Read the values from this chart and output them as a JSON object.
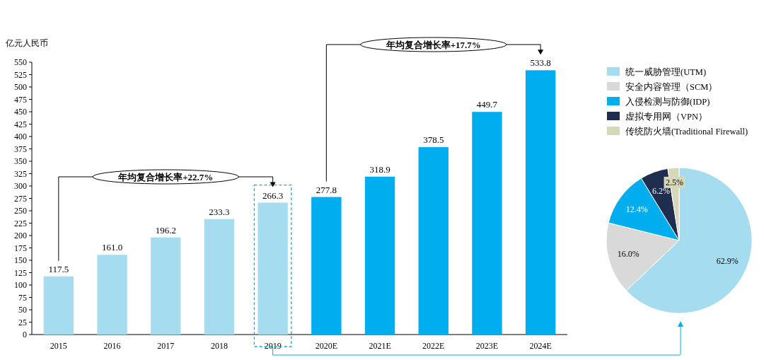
{
  "chart_data": [
    {
      "type": "bar",
      "ylabel": "亿元人民币",
      "categories": [
        "2015",
        "2016",
        "2017",
        "2018",
        "2019",
        "2020E",
        "2021E",
        "2022E",
        "2023E",
        "2024E"
      ],
      "values": [
        117.5,
        161.0,
        196.2,
        233.3,
        266.3,
        277.8,
        318.9,
        378.5,
        449.7,
        533.8
      ],
      "value_labels": [
        "117.5",
        "161.0",
        "196.2",
        "233.3",
        "266.3",
        "277.8",
        "318.9",
        "378.5",
        "449.7",
        "533.8"
      ],
      "colors": [
        "#a6dcf0",
        "#a6dcf0",
        "#a6dcf0",
        "#a6dcf0",
        "#a6dcf0",
        "#00aeef",
        "#00aeef",
        "#00aeef",
        "#00aeef",
        "#00aeef"
      ],
      "ylim": [
        0,
        550
      ],
      "yticks": [
        0,
        25,
        50,
        75,
        100,
        125,
        150,
        175,
        200,
        225,
        250,
        275,
        300,
        325,
        350,
        375,
        400,
        425,
        450,
        475,
        500,
        525,
        550
      ],
      "grid": false,
      "annotations": [
        "年均复合增长率+22.7%",
        "年均复合增长率+17.7%"
      ]
    },
    {
      "type": "pie",
      "categories": [
        "统一威胁管理(UTM)",
        "安全内容管理（SCM）",
        "入侵检测与防御(IDP)",
        "虚拟专用网（VPN）",
        "传统防火墙(Traditional Firewall)"
      ],
      "values": [
        62.9,
        16.0,
        12.4,
        6.2,
        2.5
      ],
      "value_labels": [
        "62.9%",
        "16.0%",
        "12.4%",
        "6.2%",
        "2.5%"
      ],
      "colors": [
        "#a6dcf0",
        "#d9d9d9",
        "#00aeef",
        "#1f2d4e",
        "#d6d8b8"
      ],
      "legend": "top"
    }
  ]
}
